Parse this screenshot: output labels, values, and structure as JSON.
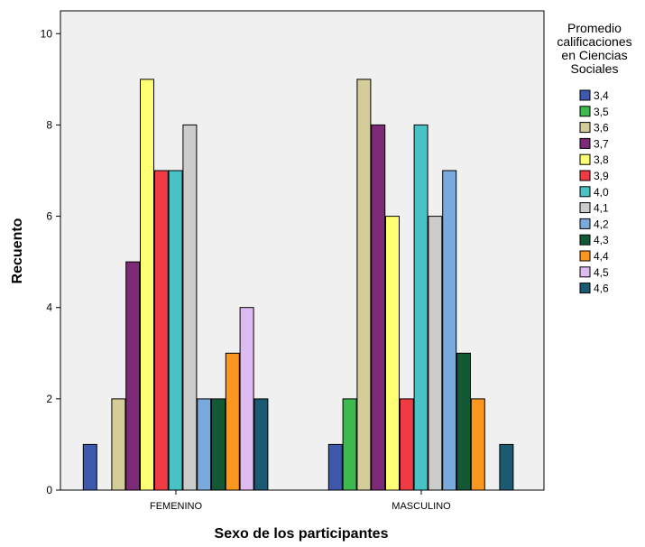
{
  "chart_data": {
    "type": "bar",
    "xlabel": "Sexo de los participantes",
    "ylabel": "Recuento",
    "ylim": [
      0,
      10.5
    ],
    "yticks": [
      0,
      2,
      4,
      6,
      8,
      10
    ],
    "grid": false,
    "legend_placement": "right",
    "legend_title_lines": [
      "Promedio",
      "calificaciones",
      "en Ciencias",
      "Sociales"
    ],
    "categories": [
      "FEMENINO",
      "MASCULINO"
    ],
    "series": [
      {
        "name": "3,4",
        "color": "#3e58ac",
        "values": [
          1,
          1
        ]
      },
      {
        "name": "3,5",
        "color": "#3dba4e",
        "values": [
          0,
          2
        ]
      },
      {
        "name": "3,6",
        "color": "#d4cc99",
        "values": [
          2,
          9
        ]
      },
      {
        "name": "3,7",
        "color": "#7d2a77",
        "values": [
          5,
          8
        ]
      },
      {
        "name": "3,8",
        "color": "#ffff73",
        "values": [
          9,
          6
        ]
      },
      {
        "name": "3,9",
        "color": "#ee3b44",
        "values": [
          7,
          2
        ]
      },
      {
        "name": "4,0",
        "color": "#48c2c5",
        "values": [
          7,
          8
        ]
      },
      {
        "name": "4,1",
        "color": "#cccccc",
        "values": [
          8,
          6
        ]
      },
      {
        "name": "4,2",
        "color": "#7aaadc",
        "values": [
          2,
          7
        ]
      },
      {
        "name": "4,3",
        "color": "#115a35",
        "values": [
          2,
          3
        ]
      },
      {
        "name": "4,4",
        "color": "#fb961e",
        "values": [
          3,
          2
        ]
      },
      {
        "name": "4,5",
        "color": "#ddbbf0",
        "values": [
          4,
          0
        ]
      },
      {
        "name": "4,6",
        "color": "#1a5b72",
        "values": [
          2,
          1
        ]
      }
    ],
    "plot_background": "#f0f0f0"
  }
}
